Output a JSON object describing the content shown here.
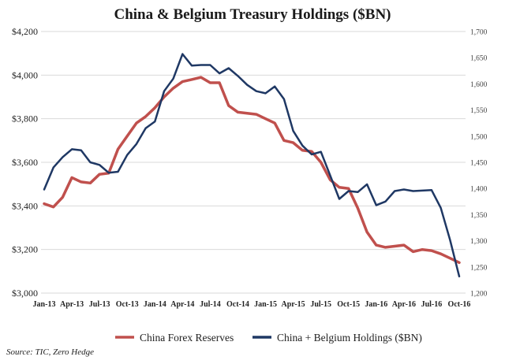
{
  "chart_data": {
    "type": "line",
    "title": "China & Belgium Treasury Holdings ($BN)",
    "source": "Source: TIC, Zero Hedge",
    "x_tick_labels": [
      "Jan-13",
      "Apr-13",
      "Jul-13",
      "Oct-13",
      "Jan-14",
      "Apr-14",
      "Jul-14",
      "Oct-14",
      "Jan-15",
      "Apr-15",
      "Jul-15",
      "Oct-15",
      "Jan-16",
      "Apr-16",
      "Jul-16",
      "Oct-16"
    ],
    "x_tick_index": [
      0,
      3,
      6,
      9,
      12,
      15,
      18,
      21,
      24,
      27,
      30,
      33,
      36,
      39,
      42,
      45
    ],
    "y_left": {
      "ticks": [
        "$3,000",
        "$3,200",
        "$3,400",
        "$3,600",
        "$3,800",
        "$4,000",
        "$4,200"
      ],
      "range": [
        3000,
        4200
      ]
    },
    "y_right": {
      "ticks": [
        "1,200",
        "1,250",
        "1,300",
        "1,350",
        "1,400",
        "1,450",
        "1,500",
        "1,550",
        "1,600",
        "1,650",
        "1,700"
      ],
      "range": [
        1200,
        1700
      ]
    },
    "grid": "horizontal",
    "legend_position": "bottom",
    "series": [
      {
        "name": "China Forex Reserves",
        "axis": "left",
        "color": "#c0504d",
        "x_start": "Jan-13",
        "values": [
          3410,
          3395,
          3440,
          3530,
          3510,
          3505,
          3545,
          3550,
          3660,
          3720,
          3780,
          3810,
          3850,
          3900,
          3940,
          3970,
          3980,
          3990,
          3965,
          3965,
          3860,
          3830,
          3825,
          3820,
          3800,
          3780,
          3700,
          3690,
          3655,
          3650,
          3600,
          3520,
          3485,
          3480,
          3390,
          3280,
          3220,
          3210,
          3215,
          3220,
          3190,
          3200,
          3195,
          3180,
          3160,
          3140
        ]
      },
      {
        "name": "China + Belgium Holdings ($BN)",
        "axis": "right",
        "color": "#1f3864",
        "x_start": "Jan-13",
        "values": [
          1398,
          1440,
          1460,
          1475,
          1473,
          1450,
          1445,
          1430,
          1432,
          1464,
          1485,
          1515,
          1528,
          1586,
          1610,
          1657,
          1635,
          1636,
          1636,
          1620,
          1630,
          1615,
          1598,
          1586,
          1582,
          1595,
          1571,
          1510,
          1482,
          1465,
          1470,
          1425,
          1380,
          1395,
          1393,
          1408,
          1368,
          1375,
          1395,
          1398,
          1395,
          1396,
          1397,
          1363,
          1302,
          1232
        ]
      }
    ]
  }
}
